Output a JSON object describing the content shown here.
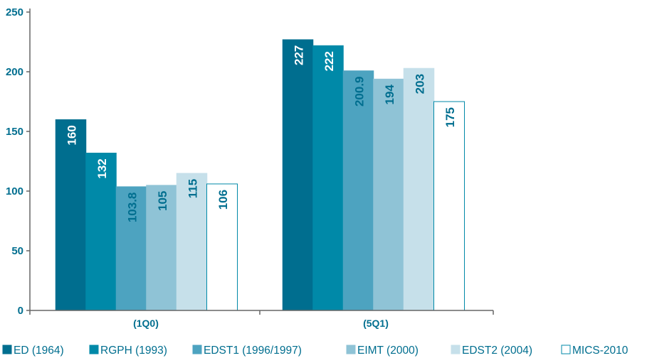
{
  "chart_data": {
    "type": "bar",
    "categories": [
      "(1Q0)",
      "(5Q1)"
    ],
    "series": [
      {
        "name": "ED (1964)",
        "values": [
          160,
          227
        ],
        "color": "#006e8f"
      },
      {
        "name": "RGPH (1993)",
        "values": [
          132,
          222
        ],
        "color": "#0089a8"
      },
      {
        "name": "EDST1 (1996/1997)",
        "values": [
          103.8,
          200.9
        ],
        "color": "#4da3c0"
      },
      {
        "name": "EIMT (2000)",
        "values": [
          105,
          194
        ],
        "color": "#8fc3d6"
      },
      {
        "name": "EDST2 (2004)",
        "values": [
          115,
          203
        ],
        "color": "#c6e0ea"
      },
      {
        "name": "MICS-2010",
        "values": [
          106,
          175
        ],
        "color": "#ffffff"
      }
    ],
    "data_labels": [
      [
        "160",
        "227"
      ],
      [
        "132",
        "222"
      ],
      [
        "103.8",
        "200.9"
      ],
      [
        "105",
        "194"
      ],
      [
        "115",
        "203"
      ],
      [
        "106",
        "175"
      ]
    ],
    "y_ticks": [
      "0",
      "50",
      "100",
      "150",
      "200",
      "250"
    ],
    "ylim": [
      0,
      250
    ],
    "grid": false,
    "legend_position": "bottom",
    "title": "",
    "xlabel": "",
    "ylabel": ""
  }
}
